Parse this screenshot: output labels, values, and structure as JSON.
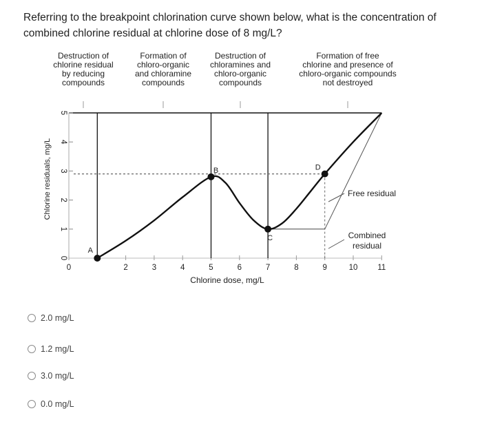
{
  "question": {
    "line1": "Referring to the breakpoint chlorination curve shown below, what is the concentration of",
    "line2": "combined chlorine residual at chlorine dose of 8 mg/L?"
  },
  "chart_data": {
    "type": "line",
    "xlabel": "Chlorine dose, mg/L",
    "ylabel": "Chlorine residuals, mg/L",
    "xlim": [
      0,
      11
    ],
    "ylim": [
      0,
      5
    ],
    "x_ticks": [
      "0",
      "2",
      "3",
      "4",
      "5",
      "6",
      "7",
      "8",
      "9",
      "10",
      "11"
    ],
    "y_ticks": [
      "0",
      "1",
      "2",
      "3",
      "4",
      "5"
    ],
    "series": [
      {
        "values_x": [
          1,
          2,
          3,
          4,
          5,
          5.5,
          6,
          6.5,
          7,
          7.5,
          8,
          8.5,
          9,
          10,
          11
        ],
        "values_y": [
          0,
          0.6,
          1.3,
          2.1,
          2.8,
          2.6,
          1.9,
          1.3,
          1.0,
          1.2,
          1.7,
          2.3,
          2.9,
          4.0,
          5.0
        ]
      }
    ],
    "extra_lines": {
      "combined_plateau_y": 1.0,
      "breakpoint_level_y": 2.9,
      "top_line_y": 5.0,
      "free_residual_start_x": 9,
      "free_residual_start_y": 1.0
    },
    "zone_boundaries_x": [
      1,
      5,
      7
    ],
    "points": [
      {
        "label": "A",
        "x": 1,
        "y": 0
      },
      {
        "label": "B",
        "x": 5,
        "y": 2.8
      },
      {
        "label": "C",
        "x": 7,
        "y": 1.0
      },
      {
        "label": "D",
        "x": 9,
        "y": 2.9
      }
    ],
    "zones": [
      {
        "lines": [
          "Destruction of",
          "chlorine residual",
          "by reducing",
          "compounds"
        ]
      },
      {
        "lines": [
          "Formation of",
          "chloro-organic",
          "and chloramine",
          "compounds"
        ]
      },
      {
        "lines": [
          "Destruction of",
          "chloramines and",
          "chloro-organic",
          "compounds"
        ]
      },
      {
        "lines": [
          "Formation of free",
          "chlorine and presence of",
          "chloro-organic compounds",
          "not destroyed"
        ]
      }
    ],
    "annotations": [
      {
        "lines": [
          "Free residual"
        ]
      },
      {
        "lines": [
          "Combined",
          "residual"
        ]
      }
    ]
  },
  "options": [
    {
      "label": "2.0 mg/L"
    },
    {
      "label": "1.2 mg/L"
    },
    {
      "label": "3.0 mg/L"
    },
    {
      "label": "0.0 mg/L"
    }
  ],
  "colors": {
    "curve": "#111111",
    "dashed": "#666666",
    "text": "#222222",
    "radio": "#8a8a8a"
  }
}
